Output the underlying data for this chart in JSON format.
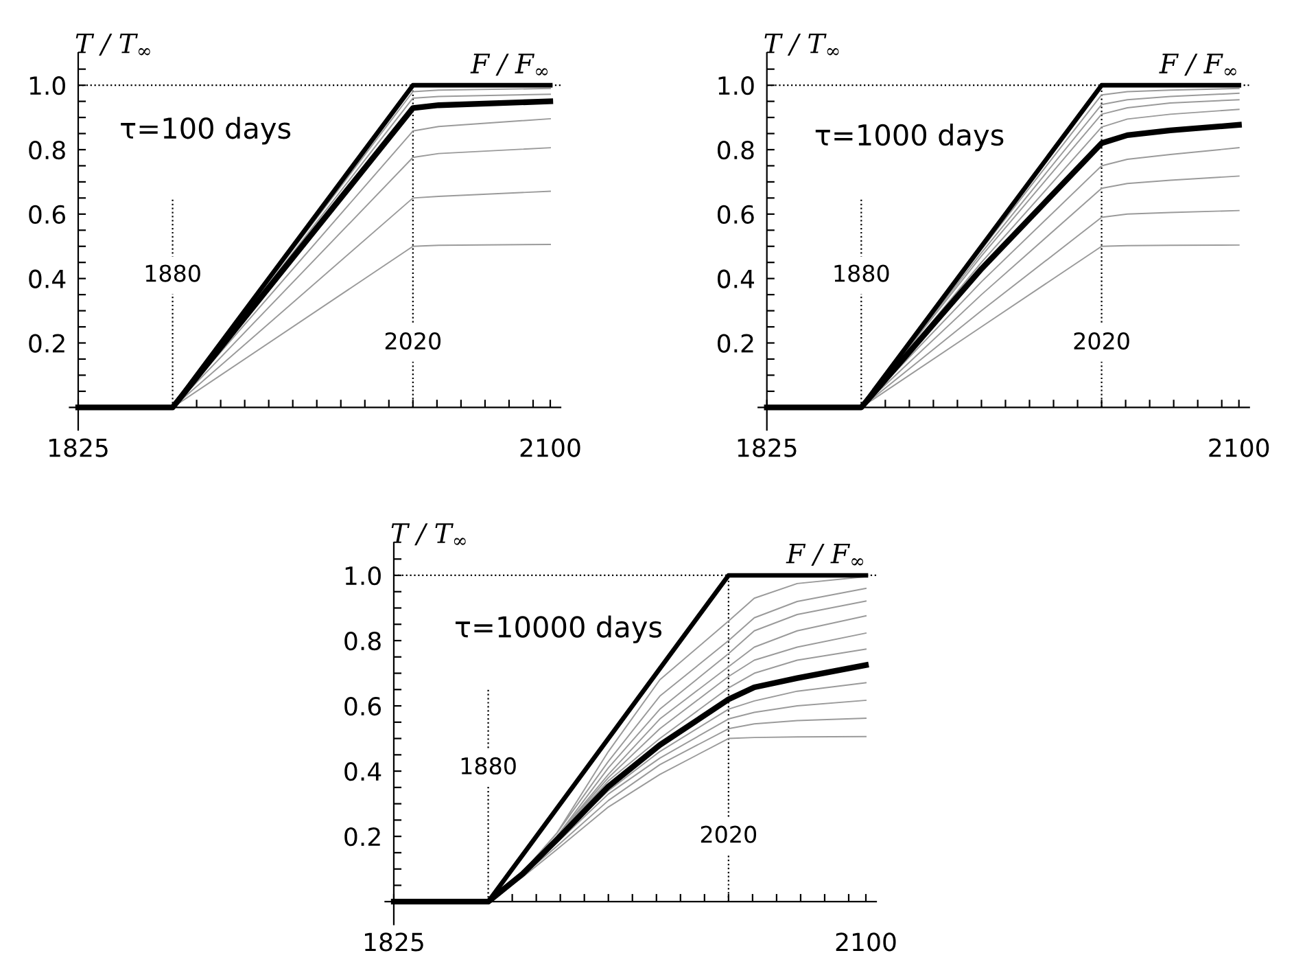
{
  "chart_data": [
    {
      "type": "line",
      "ylabel": "T / T$_{∞}$",
      "annotations": [
        "τ=100 days"
      ],
      "x": [
        1825,
        1880,
        2020,
        2035,
        2100
      ],
      "series": [
        {
          "name": "F / F$_{∞}$",
          "color": "#000000",
          "x": [
            1825,
            1880,
            2020,
            2100
          ],
          "values": [
            0,
            0,
            1.0,
            1.0
          ]
        },
        {
          "color": "#9a9a9a",
          "values": [
            0,
            0,
            0.98,
            0.985,
            0.99
          ]
        },
        {
          "color": "#9a9a9a",
          "values": [
            0,
            0,
            0.96,
            0.965,
            0.972
          ]
        },
        {
          "color": "#000000",
          "values": [
            0,
            0,
            0.929,
            0.938,
            0.95
          ]
        },
        {
          "color": "#9a9a9a",
          "values": [
            0,
            0,
            0.858,
            0.872,
            0.896
          ]
        },
        {
          "color": "#9a9a9a",
          "values": [
            0,
            0,
            0.776,
            0.788,
            0.806
          ]
        },
        {
          "color": "#9a9a9a",
          "values": [
            0,
            0,
            0.65,
            0.655,
            0.671
          ]
        },
        {
          "color": "#9a9a9a",
          "values": [
            0,
            0,
            0.5,
            0.503,
            0.506
          ]
        }
      ],
      "xlim": [
        1820,
        2106
      ],
      "ylim": [
        -0.07,
        1.1
      ],
      "xticks": [
        {
          "value": 1825,
          "label": "1825"
        },
        {
          "value": 1894,
          "label": null
        },
        {
          "value": 1908,
          "label": null
        },
        {
          "value": 1922,
          "label": null
        },
        {
          "value": 1936,
          "label": null
        },
        {
          "value": 1950,
          "label": null
        },
        {
          "value": 1964,
          "label": null
        },
        {
          "value": 1978,
          "label": null
        },
        {
          "value": 1992,
          "label": null
        },
        {
          "value": 2006,
          "label": null
        },
        {
          "value": 2020,
          "label": null
        },
        {
          "value": 2034,
          "label": null
        },
        {
          "value": 2048,
          "label": null
        },
        {
          "value": 2062,
          "label": null
        },
        {
          "value": 2076,
          "label": null
        },
        {
          "value": 2090,
          "label": null
        },
        {
          "value": 2100,
          "label": "2100"
        }
      ],
      "yticks": [
        {
          "value": 0.05,
          "label": null
        },
        {
          "value": 0.1,
          "label": null
        },
        {
          "value": 0.15,
          "label": null
        },
        0.2,
        {
          "value": 0.25,
          "label": null
        },
        {
          "value": 0.3,
          "label": null
        },
        {
          "value": 0.35,
          "label": null
        },
        0.4,
        {
          "value": 0.45,
          "label": null
        },
        {
          "value": 0.5,
          "label": null
        },
        {
          "value": 0.55,
          "label": null
        },
        0.6,
        {
          "value": 0.65,
          "label": null
        },
        {
          "value": 0.7,
          "label": null
        },
        {
          "value": 0.75,
          "label": null
        },
        0.8,
        {
          "value": 0.85,
          "label": null
        },
        {
          "value": 0.9,
          "label": null
        },
        {
          "value": 0.95,
          "label": null
        },
        {
          "value": 1.0,
          "label": "1.0"
        },
        {
          "value": 1.05,
          "label": null
        }
      ],
      "ref_lines": [
        {
          "axis": "x",
          "value": 1880,
          "label": "1880",
          "line_style": "dotted"
        },
        {
          "axis": "x",
          "value": 2020,
          "label": "2020",
          "line_style": "dotted"
        },
        {
          "axis": "y",
          "value": 1.0,
          "line_style": "dotted"
        }
      ],
      "grid": false,
      "legend": false,
      "line_style": "solid",
      "marker": "none"
    },
    {
      "type": "line",
      "ylabel": "T / T$_{∞}$",
      "annotations": [
        "τ=1000 days"
      ],
      "x": [
        1825,
        1880,
        1950,
        2020,
        2035,
        2060,
        2100
      ],
      "series": [
        {
          "name": "F / F$_{∞}$",
          "color": "#000000",
          "x": [
            1825,
            1880,
            2020,
            2100
          ],
          "values": [
            0,
            0,
            1.0,
            1.0
          ]
        },
        {
          "color": "#9a9a9a",
          "values": [
            0,
            0,
            0.49,
            0.97,
            0.98,
            0.985,
            0.99
          ]
        },
        {
          "color": "#9a9a9a",
          "values": [
            0,
            0,
            0.48,
            0.94,
            0.955,
            0.965,
            0.975
          ]
        },
        {
          "color": "#9a9a9a",
          "values": [
            0,
            0,
            0.47,
            0.91,
            0.93,
            0.945,
            0.955
          ]
        },
        {
          "color": "#9a9a9a",
          "values": [
            0,
            0,
            0.45,
            0.87,
            0.895,
            0.91,
            0.925
          ]
        },
        {
          "color": "#000000",
          "values": [
            0,
            0,
            0.43,
            0.82,
            0.845,
            0.86,
            0.877
          ]
        },
        {
          "color": "#9a9a9a",
          "values": [
            0,
            0,
            0.39,
            0.75,
            0.77,
            0.785,
            0.806
          ]
        },
        {
          "color": "#9a9a9a",
          "values": [
            0,
            0,
            0.35,
            0.68,
            0.695,
            0.705,
            0.718
          ]
        },
        {
          "color": "#9a9a9a",
          "values": [
            0,
            0,
            0.3,
            0.59,
            0.6,
            0.605,
            0.611
          ]
        },
        {
          "color": "#9a9a9a",
          "values": [
            0,
            0,
            0.25,
            0.5,
            0.502,
            0.503,
            0.504
          ]
        }
      ],
      "xlim": [
        1820,
        2106
      ],
      "ylim": [
        -0.07,
        1.1
      ],
      "xticks": [
        {
          "value": 1825,
          "label": "1825"
        },
        {
          "value": 1894,
          "label": null
        },
        {
          "value": 1908,
          "label": null
        },
        {
          "value": 1922,
          "label": null
        },
        {
          "value": 1936,
          "label": null
        },
        {
          "value": 1950,
          "label": null
        },
        {
          "value": 1964,
          "label": null
        },
        {
          "value": 1978,
          "label": null
        },
        {
          "value": 1992,
          "label": null
        },
        {
          "value": 2006,
          "label": null
        },
        {
          "value": 2020,
          "label": null
        },
        {
          "value": 2034,
          "label": null
        },
        {
          "value": 2048,
          "label": null
        },
        {
          "value": 2062,
          "label": null
        },
        {
          "value": 2076,
          "label": null
        },
        {
          "value": 2090,
          "label": null
        },
        {
          "value": 2100,
          "label": "2100"
        }
      ],
      "yticks": [
        {
          "value": 0.05,
          "label": null
        },
        {
          "value": 0.1,
          "label": null
        },
        {
          "value": 0.15,
          "label": null
        },
        0.2,
        {
          "value": 0.25,
          "label": null
        },
        {
          "value": 0.3,
          "label": null
        },
        {
          "value": 0.35,
          "label": null
        },
        0.4,
        {
          "value": 0.45,
          "label": null
        },
        {
          "value": 0.5,
          "label": null
        },
        {
          "value": 0.55,
          "label": null
        },
        0.6,
        {
          "value": 0.65,
          "label": null
        },
        {
          "value": 0.7,
          "label": null
        },
        {
          "value": 0.75,
          "label": null
        },
        0.8,
        {
          "value": 0.85,
          "label": null
        },
        {
          "value": 0.9,
          "label": null
        },
        {
          "value": 0.95,
          "label": null
        },
        {
          "value": 1.0,
          "label": "1.0"
        },
        {
          "value": 1.05,
          "label": null
        }
      ],
      "ref_lines": [
        {
          "axis": "x",
          "value": 1880,
          "label": "1880",
          "line_style": "dotted"
        },
        {
          "axis": "x",
          "value": 2020,
          "label": "2020",
          "line_style": "dotted"
        },
        {
          "axis": "y",
          "value": 1.0,
          "line_style": "dotted"
        }
      ],
      "grid": false,
      "legend": false,
      "line_style": "solid",
      "marker": "none"
    },
    {
      "type": "line",
      "ylabel": "T / T$_{∞}$",
      "annotations": [
        "τ=10000 days"
      ],
      "x": [
        1825,
        1880,
        1900,
        1920,
        1950,
        1980,
        2020,
        2035,
        2060,
        2100
      ],
      "series": [
        {
          "name": "F / F$_{∞}$",
          "color": "#000000",
          "x": [
            1825,
            1880,
            2020,
            2100
          ],
          "values": [
            0,
            0,
            1.0,
            1.0
          ]
        },
        {
          "color": "#9a9a9a",
          "values": [
            0,
            0,
            0.09,
            0.21,
            0.46,
            0.68,
            0.86,
            0.93,
            0.975,
            0.996
          ]
        },
        {
          "color": "#9a9a9a",
          "values": [
            0,
            0,
            0.09,
            0.21,
            0.43,
            0.63,
            0.8,
            0.87,
            0.92,
            0.96
          ]
        },
        {
          "color": "#9a9a9a",
          "values": [
            0,
            0,
            0.09,
            0.2,
            0.41,
            0.59,
            0.76,
            0.83,
            0.88,
            0.921
          ]
        },
        {
          "color": "#9a9a9a",
          "values": [
            0,
            0,
            0.09,
            0.2,
            0.39,
            0.56,
            0.72,
            0.78,
            0.83,
            0.876
          ]
        },
        {
          "color": "#9a9a9a",
          "values": [
            0,
            0,
            0.09,
            0.2,
            0.38,
            0.53,
            0.69,
            0.74,
            0.78,
            0.823
          ]
        },
        {
          "color": "#9a9a9a",
          "values": [
            0,
            0,
            0.09,
            0.2,
            0.37,
            0.5,
            0.655,
            0.7,
            0.74,
            0.774
          ]
        },
        {
          "color": "#000000",
          "values": [
            0,
            0,
            0.085,
            0.19,
            0.353,
            0.48,
            0.62,
            0.657,
            0.685,
            0.725
          ]
        },
        {
          "color": "#9a9a9a",
          "values": [
            0,
            0,
            0.085,
            0.19,
            0.34,
            0.46,
            0.59,
            0.615,
            0.645,
            0.671
          ]
        },
        {
          "color": "#9a9a9a",
          "values": [
            0,
            0,
            0.085,
            0.18,
            0.33,
            0.44,
            0.56,
            0.58,
            0.6,
            0.617
          ]
        },
        {
          "color": "#9a9a9a",
          "values": [
            0,
            0,
            0.08,
            0.17,
            0.31,
            0.42,
            0.53,
            0.545,
            0.555,
            0.562
          ]
        },
        {
          "color": "#9a9a9a",
          "values": [
            0,
            0,
            0.075,
            0.16,
            0.29,
            0.39,
            0.5,
            0.503,
            0.505,
            0.506
          ]
        }
      ],
      "xlim": [
        1820,
        2106
      ],
      "ylim": [
        -0.07,
        1.1
      ],
      "xticks": [
        {
          "value": 1825,
          "label": "1825"
        },
        {
          "value": 1894,
          "label": null
        },
        {
          "value": 1908,
          "label": null
        },
        {
          "value": 1922,
          "label": null
        },
        {
          "value": 1936,
          "label": null
        },
        {
          "value": 1950,
          "label": null
        },
        {
          "value": 1964,
          "label": null
        },
        {
          "value": 1978,
          "label": null
        },
        {
          "value": 1992,
          "label": null
        },
        {
          "value": 2006,
          "label": null
        },
        {
          "value": 2020,
          "label": null
        },
        {
          "value": 2034,
          "label": null
        },
        {
          "value": 2048,
          "label": null
        },
        {
          "value": 2062,
          "label": null
        },
        {
          "value": 2076,
          "label": null
        },
        {
          "value": 2090,
          "label": null
        },
        {
          "value": 2100,
          "label": "2100"
        }
      ],
      "yticks": [
        {
          "value": 0.05,
          "label": null
        },
        {
          "value": 0.1,
          "label": null
        },
        {
          "value": 0.15,
          "label": null
        },
        0.2,
        {
          "value": 0.25,
          "label": null
        },
        {
          "value": 0.3,
          "label": null
        },
        {
          "value": 0.35,
          "label": null
        },
        0.4,
        {
          "value": 0.45,
          "label": null
        },
        {
          "value": 0.5,
          "label": null
        },
        {
          "value": 0.55,
          "label": null
        },
        0.6,
        {
          "value": 0.65,
          "label": null
        },
        {
          "value": 0.7,
          "label": null
        },
        {
          "value": 0.75,
          "label": null
        },
        0.8,
        {
          "value": 0.85,
          "label": null
        },
        {
          "value": 0.9,
          "label": null
        },
        {
          "value": 0.95,
          "label": null
        },
        {
          "value": 1.0,
          "label": "1.0"
        },
        {
          "value": 1.05,
          "label": null
        }
      ],
      "ref_lines": [
        {
          "axis": "x",
          "value": 1880,
          "label": "1880",
          "line_style": "dotted"
        },
        {
          "axis": "x",
          "value": 2020,
          "label": "2020",
          "line_style": "dotted"
        },
        {
          "axis": "y",
          "value": 1.0,
          "line_style": "dotted"
        }
      ],
      "grid": false,
      "legend": false,
      "line_style": "solid",
      "marker": "none"
    }
  ]
}
